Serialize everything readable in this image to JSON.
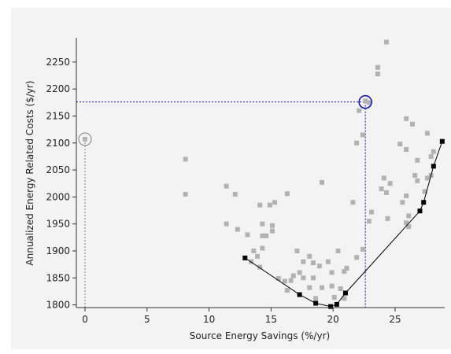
{
  "chart_data": {
    "type": "scatter",
    "xlabel": "Source Energy Savings (%/yr)",
    "ylabel": "Annualized Energy Related Costs ($/yr)",
    "xlim": [
      -0.7,
      29
    ],
    "ylim": [
      1795,
      2295
    ],
    "xticks": [
      0,
      5,
      10,
      15,
      20,
      25
    ],
    "yticks": [
      1800,
      1850,
      1900,
      1950,
      2000,
      2050,
      2100,
      2150,
      2200,
      2250
    ],
    "grid": false,
    "colors": {
      "points": "#b2b2b2",
      "frontier": "#000000",
      "selection": "#0a0ab4",
      "baseline": "#808080"
    },
    "series": [
      {
        "kind": "scatter",
        "points": [
          [
            0,
            2107
          ],
          [
            8.1,
            2070
          ],
          [
            8.1,
            2005
          ],
          [
            11.4,
            2020
          ],
          [
            12.1,
            2005
          ],
          [
            11.4,
            1950
          ],
          [
            12.3,
            1940
          ],
          [
            13.1,
            1930
          ],
          [
            13.4,
            1880
          ],
          [
            13.6,
            1900
          ],
          [
            13.9,
            1890
          ],
          [
            14.1,
            1870
          ],
          [
            14.3,
            1950
          ],
          [
            14.3,
            1928
          ],
          [
            14.6,
            1928
          ],
          [
            14.3,
            1905
          ],
          [
            14.1,
            1985
          ],
          [
            14.9,
            1985
          ],
          [
            15.1,
            1947
          ],
          [
            15.3,
            1990
          ],
          [
            15.1,
            1937
          ],
          [
            15.6,
            1849
          ],
          [
            16.1,
            1844
          ],
          [
            16.3,
            1827
          ],
          [
            16.3,
            2006
          ],
          [
            16.6,
            1845
          ],
          [
            16.8,
            1854
          ],
          [
            17.1,
            1900
          ],
          [
            17.3,
            1860
          ],
          [
            17.6,
            1880
          ],
          [
            17.6,
            1850
          ],
          [
            18.1,
            1890
          ],
          [
            18.1,
            1832
          ],
          [
            18.4,
            1878
          ],
          [
            18.4,
            1850
          ],
          [
            18.6,
            1812
          ],
          [
            18.9,
            1872
          ],
          [
            19.1,
            2027
          ],
          [
            19.1,
            1832
          ],
          [
            19.6,
            1880
          ],
          [
            19.9,
            1860
          ],
          [
            19.9,
            1835
          ],
          [
            20.1,
            1814
          ],
          [
            20.4,
            1900
          ],
          [
            20.6,
            1830
          ],
          [
            20.9,
            1862
          ],
          [
            20.9,
            1812
          ],
          [
            21.1,
            1868
          ],
          [
            21.6,
            1990
          ],
          [
            21.9,
            2100
          ],
          [
            21.9,
            1888
          ],
          [
            22.1,
            2160
          ],
          [
            22.4,
            1903
          ],
          [
            22.6,
            2178
          ],
          [
            22.4,
            2115
          ],
          [
            22.9,
            2175
          ],
          [
            22.9,
            1955
          ],
          [
            23.1,
            1972
          ],
          [
            23.6,
            2240
          ],
          [
            23.6,
            2228
          ],
          [
            23.9,
            2015
          ],
          [
            24.1,
            2035
          ],
          [
            24.3,
            2287
          ],
          [
            24.3,
            2008
          ],
          [
            24.4,
            1960
          ],
          [
            24.6,
            2025
          ],
          [
            25.4,
            2098
          ],
          [
            25.9,
            2145
          ],
          [
            25.9,
            2088
          ],
          [
            25.9,
            1952
          ],
          [
            25.6,
            1990
          ],
          [
            25.9,
            2002
          ],
          [
            26.1,
            1965
          ],
          [
            26.1,
            1945
          ],
          [
            26.4,
            2135
          ],
          [
            26.6,
            2040
          ],
          [
            26.8,
            2068
          ],
          [
            26.8,
            2030
          ],
          [
            27.4,
            2010
          ],
          [
            27.6,
            2118
          ],
          [
            27.6,
            2035
          ],
          [
            27.9,
            2075
          ],
          [
            27.9,
            2040
          ],
          [
            28.1,
            2084
          ]
        ]
      },
      {
        "kind": "frontier",
        "points": [
          [
            12.9,
            1887
          ],
          [
            17.3,
            1819
          ],
          [
            18.6,
            1803
          ],
          [
            19.8,
            1797
          ],
          [
            20.3,
            1801
          ],
          [
            21.0,
            1822
          ],
          [
            27.0,
            1974
          ],
          [
            27.3,
            1990
          ],
          [
            28.1,
            2057
          ],
          [
            28.8,
            2103
          ]
        ]
      }
    ],
    "highlight": {
      "selected": [
        22.6,
        2176
      ],
      "baseline": [
        0,
        2107
      ]
    }
  }
}
